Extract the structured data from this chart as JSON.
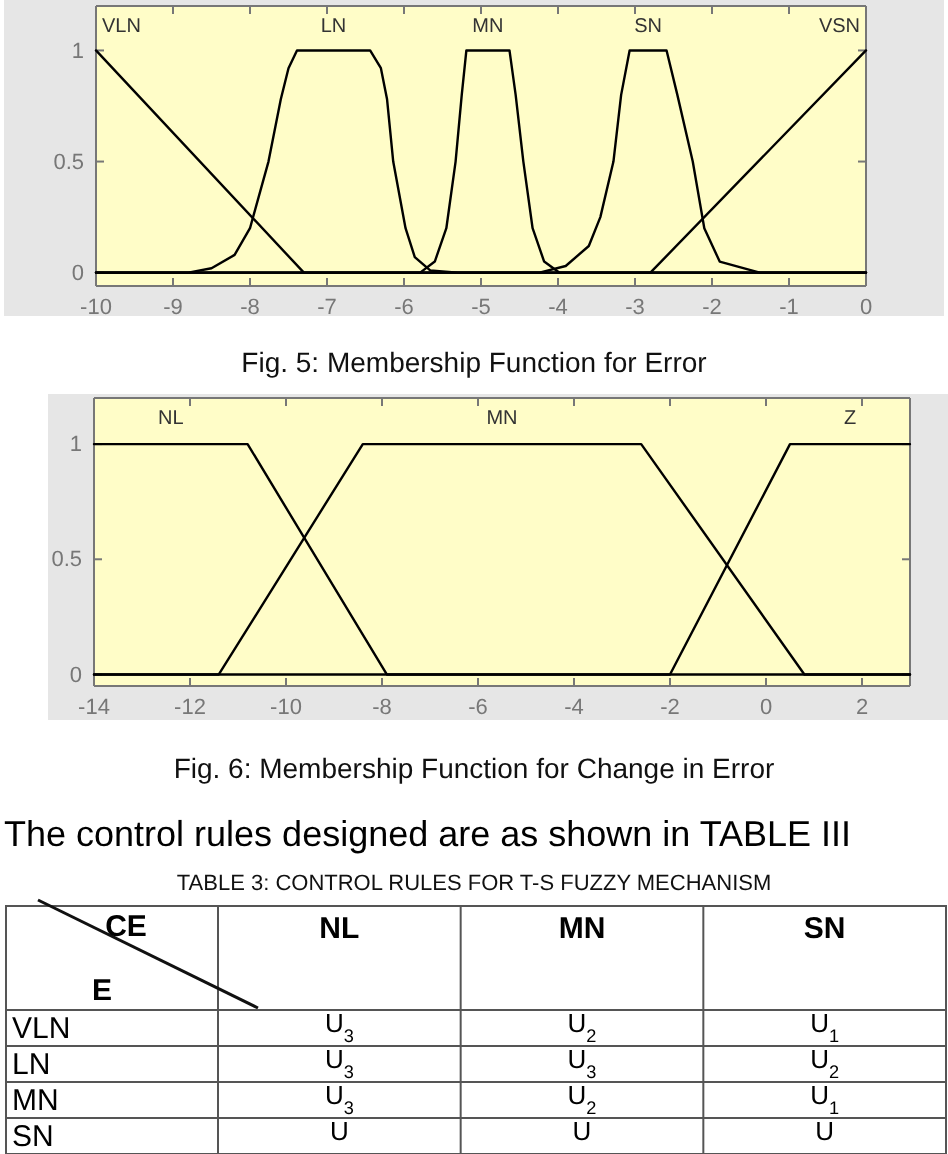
{
  "chart_data": [
    {
      "type": "line",
      "xlim": [
        -10,
        0
      ],
      "ylim": [
        -0.06,
        1.2
      ],
      "xticks": [
        -10,
        -9,
        -8,
        -7,
        -6,
        -5,
        -4,
        -3,
        -2,
        -1,
        0
      ],
      "yticks": [
        0,
        0.5,
        1
      ],
      "annotations": [
        "Fig. 5: Membership Function for Error"
      ],
      "series": [
        {
          "name": "VLN",
          "color": "#000000",
          "x": [
            -10,
            -7.3,
            0
          ],
          "values": [
            1,
            0,
            0
          ]
        },
        {
          "name": "LN",
          "color": "#000000",
          "x": [
            -10,
            -8.8,
            -8.5,
            -8.2,
            -8.0,
            -7.76,
            -7.6,
            -7.5,
            -7.39,
            -6.44,
            -6.3,
            -6.22,
            -6.14,
            -5.98,
            -5.86,
            -5.66,
            -5.3,
            0
          ],
          "values": [
            0,
            0,
            0.02,
            0.08,
            0.2,
            0.5,
            0.78,
            0.92,
            1,
            1,
            0.92,
            0.78,
            0.5,
            0.2,
            0.07,
            0.01,
            0,
            0
          ]
        },
        {
          "name": "MN",
          "color": "#000000",
          "x": [
            -10,
            -5.79,
            -5.6,
            -5.45,
            -5.33,
            -5.25,
            -5.19,
            -4.63,
            -4.55,
            -4.45,
            -4.33,
            -4.18,
            -3.98,
            0
          ],
          "values": [
            0,
            0,
            0.05,
            0.2,
            0.5,
            0.8,
            1,
            1,
            0.8,
            0.5,
            0.2,
            0.05,
            0,
            0
          ]
        },
        {
          "name": "SN",
          "color": "#000000",
          "x": [
            -10,
            -4.24,
            -3.9,
            -3.6,
            -3.45,
            -3.28,
            -3.18,
            -3.07,
            -2.59,
            -2.45,
            -2.25,
            -2.1,
            -1.9,
            -1.38,
            0
          ],
          "values": [
            0,
            0,
            0.03,
            0.12,
            0.25,
            0.5,
            0.8,
            1,
            1,
            0.8,
            0.5,
            0.2,
            0.05,
            0,
            0
          ]
        },
        {
          "name": "VSN",
          "color": "#000000",
          "x": [
            -10,
            -2.8,
            0
          ],
          "values": [
            0,
            0,
            1
          ]
        }
      ]
    },
    {
      "type": "line",
      "xlim": [
        -14,
        3
      ],
      "ylim": [
        -0.05,
        1.2
      ],
      "xticks": [
        -14,
        -12,
        -10,
        -8,
        -6,
        -4,
        -2,
        0,
        2
      ],
      "yticks": [
        0,
        0.5,
        1
      ],
      "annotations": [
        "Fig. 6: Membership Function for Change in Error"
      ],
      "series": [
        {
          "name": "NL",
          "color": "#000000",
          "x": [
            -14,
            -10.8,
            -7.9,
            3
          ],
          "values": [
            1,
            1,
            0,
            0
          ]
        },
        {
          "name": "MN",
          "color": "#000000",
          "x": [
            -14,
            -11.4,
            -8.4,
            -2.6,
            0.8,
            3
          ],
          "values": [
            0,
            0,
            1,
            1,
            0,
            0
          ]
        },
        {
          "name": "Z",
          "color": "#000000",
          "x": [
            -14,
            -2,
            0.5,
            3
          ],
          "values": [
            0,
            0,
            1,
            1
          ]
        }
      ]
    },
    {
      "type": "other",
      "title": "TABLE 3: CONTROL RULES FOR T-S FUZZY MECHANISM",
      "annotations": [
        "The control rules designed are as shown in TABLE III"
      ],
      "xlabel": "CE",
      "ylabel": "E",
      "categories": [
        "NL",
        "MN",
        "SN"
      ],
      "y_categories": [
        "VLN",
        "LN",
        "MN",
        "SN"
      ],
      "cell_labels": [
        [
          "U$_{3}$",
          "U$_{2}$",
          "U$_{1}$"
        ],
        [
          "U$_{3}$",
          "U$_{3}$",
          "U$_{2}$"
        ],
        [
          "U$_{3}$",
          "U$_{2}$",
          "U$_{1}$"
        ],
        [
          "U",
          "U",
          "U"
        ]
      ]
    }
  ]
}
